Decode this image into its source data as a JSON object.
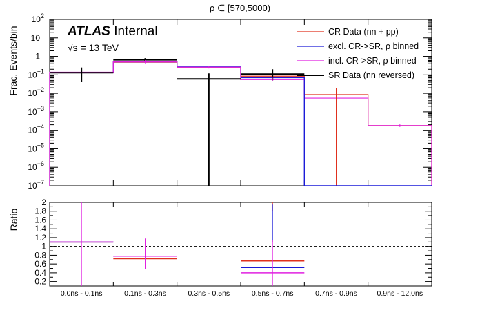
{
  "figure": {
    "title": "ρ ∈ [570,5000)",
    "brand": "ATLAS",
    "brand_suffix": "Internal",
    "energy_label": "√s = 13 TeV",
    "x_categories": [
      "0.0ns - 0.1ns",
      "0.1ns - 0.3ns",
      "0.3ns - 0.5ns",
      "0.5ns - 0.7ns",
      "0.7ns - 0.9ns",
      "0.9ns - 12.0ns"
    ],
    "colors": {
      "cr": "#e0301e",
      "excl": "#1a1ad8",
      "incl": "#e020e0",
      "sr": "#000000",
      "ref": "#000000"
    }
  },
  "chart_data": [
    {
      "type": "line",
      "style": "step-histogram",
      "ylabel": "Frac. Events/bin",
      "yscale": "log",
      "ylim": [
        1e-07,
        100
      ],
      "y_ticks": [
        {
          "v": 100,
          "mant": "10",
          "exp": "2"
        },
        {
          "v": 10,
          "mant": "10",
          "exp": ""
        },
        {
          "v": 1,
          "mant": "1",
          "exp": ""
        },
        {
          "v": 0.1,
          "mant": "10",
          "exp": "−1"
        },
        {
          "v": 0.01,
          "mant": "10",
          "exp": "−2"
        },
        {
          "v": 0.001,
          "mant": "10",
          "exp": "−3"
        },
        {
          "v": 0.0001,
          "mant": "10",
          "exp": "−4"
        },
        {
          "v": 1e-05,
          "mant": "10",
          "exp": "−5"
        },
        {
          "v": 1e-06,
          "mant": "10",
          "exp": "−6"
        },
        {
          "v": 1e-07,
          "mant": "10",
          "exp": "−7"
        }
      ],
      "categories": [
        "0.0ns - 0.1ns",
        "0.1ns - 0.3ns",
        "0.3ns - 0.5ns",
        "0.5ns - 0.7ns",
        "0.7ns - 0.9ns",
        "0.9ns - 12.0ns"
      ],
      "legend_position": "top-right",
      "series": [
        {
          "name": "CR Data (nn + pp)",
          "key": "cr",
          "values": [
            0.13,
            0.48,
            0.26,
            0.085,
            0.0085,
            0.00018
          ]
        },
        {
          "name": "excl. CR->SR, ρ binned",
          "key": "excl",
          "values": [
            0.13,
            0.5,
            0.27,
            0.07,
            null,
            null
          ]
        },
        {
          "name": "incl. CR->SR, ρ binned",
          "key": "incl",
          "values": [
            0.14,
            0.5,
            0.26,
            0.055,
            0.0055,
            0.00018
          ]
        },
        {
          "name": "SR Data (nn reversed)",
          "key": "sr",
          "values": [
            0.13,
            0.65,
            0.06,
            0.11,
            null,
            null
          ]
        }
      ]
    },
    {
      "type": "line",
      "style": "step-histogram",
      "ylabel": "Ratio",
      "ylim": [
        0.1,
        2.0
      ],
      "y_ticks": [
        0.2,
        0.4,
        0.6,
        0.8,
        1,
        1.2,
        1.4,
        1.6,
        1.8,
        2
      ],
      "reference_line": 1,
      "categories": [
        "0.0ns - 0.1ns",
        "0.1ns - 0.3ns",
        "0.3ns - 0.5ns",
        "0.5ns - 0.7ns",
        "0.7ns - 0.9ns",
        "0.9ns - 12.0ns"
      ],
      "series": [
        {
          "key": "cr",
          "values": [
            1.1,
            0.72,
            null,
            0.67,
            null,
            null
          ]
        },
        {
          "key": "excl",
          "values": [
            1.1,
            0.78,
            null,
            0.52,
            null,
            null
          ]
        },
        {
          "key": "incl",
          "values": [
            1.1,
            0.78,
            null,
            0.4,
            null,
            null
          ]
        }
      ]
    }
  ]
}
